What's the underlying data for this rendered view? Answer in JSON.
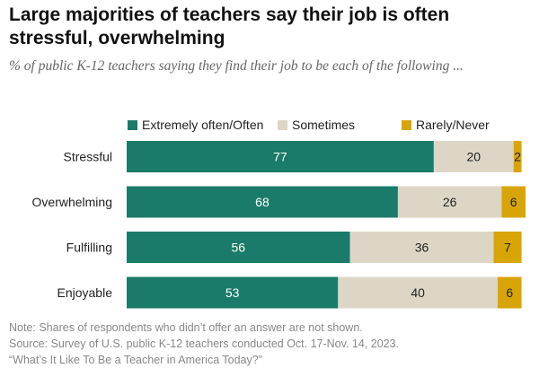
{
  "title": "Large majorities of teachers say their job is often stressful, overwhelming",
  "subtitle": "% of public K-12 teachers saying they find their job to be each of the following ...",
  "colors": {
    "often": "#1b7b6a",
    "sometimes": "#ddd6c6",
    "rarely": "#d8a508",
    "text_dark": "#222222",
    "text_light": "#ffffff"
  },
  "chart_data": {
    "type": "bar",
    "orientation": "horizontal",
    "stacked": true,
    "categories": [
      "Stressful",
      "Overwhelming",
      "Fulfilling",
      "Enjoyable"
    ],
    "series": [
      {
        "name": "Extremely often/Often",
        "values": [
          77,
          68,
          56,
          53
        ]
      },
      {
        "name": "Sometimes",
        "values": [
          20,
          26,
          36,
          40
        ]
      },
      {
        "name": "Rarely/Never",
        "values": [
          2,
          6,
          7,
          6
        ]
      }
    ],
    "xlim": [
      0,
      100
    ],
    "legend_position": "top",
    "grid": false
  },
  "notes": {
    "note": "Note: Shares of respondents who didn’t offer an answer are not shown.",
    "source": "Source: Survey of U.S. public K-12 teachers conducted Oct. 17-Nov. 14, 2023.",
    "report": "“What’s It Like To Be a Teacher in America Today?”"
  }
}
